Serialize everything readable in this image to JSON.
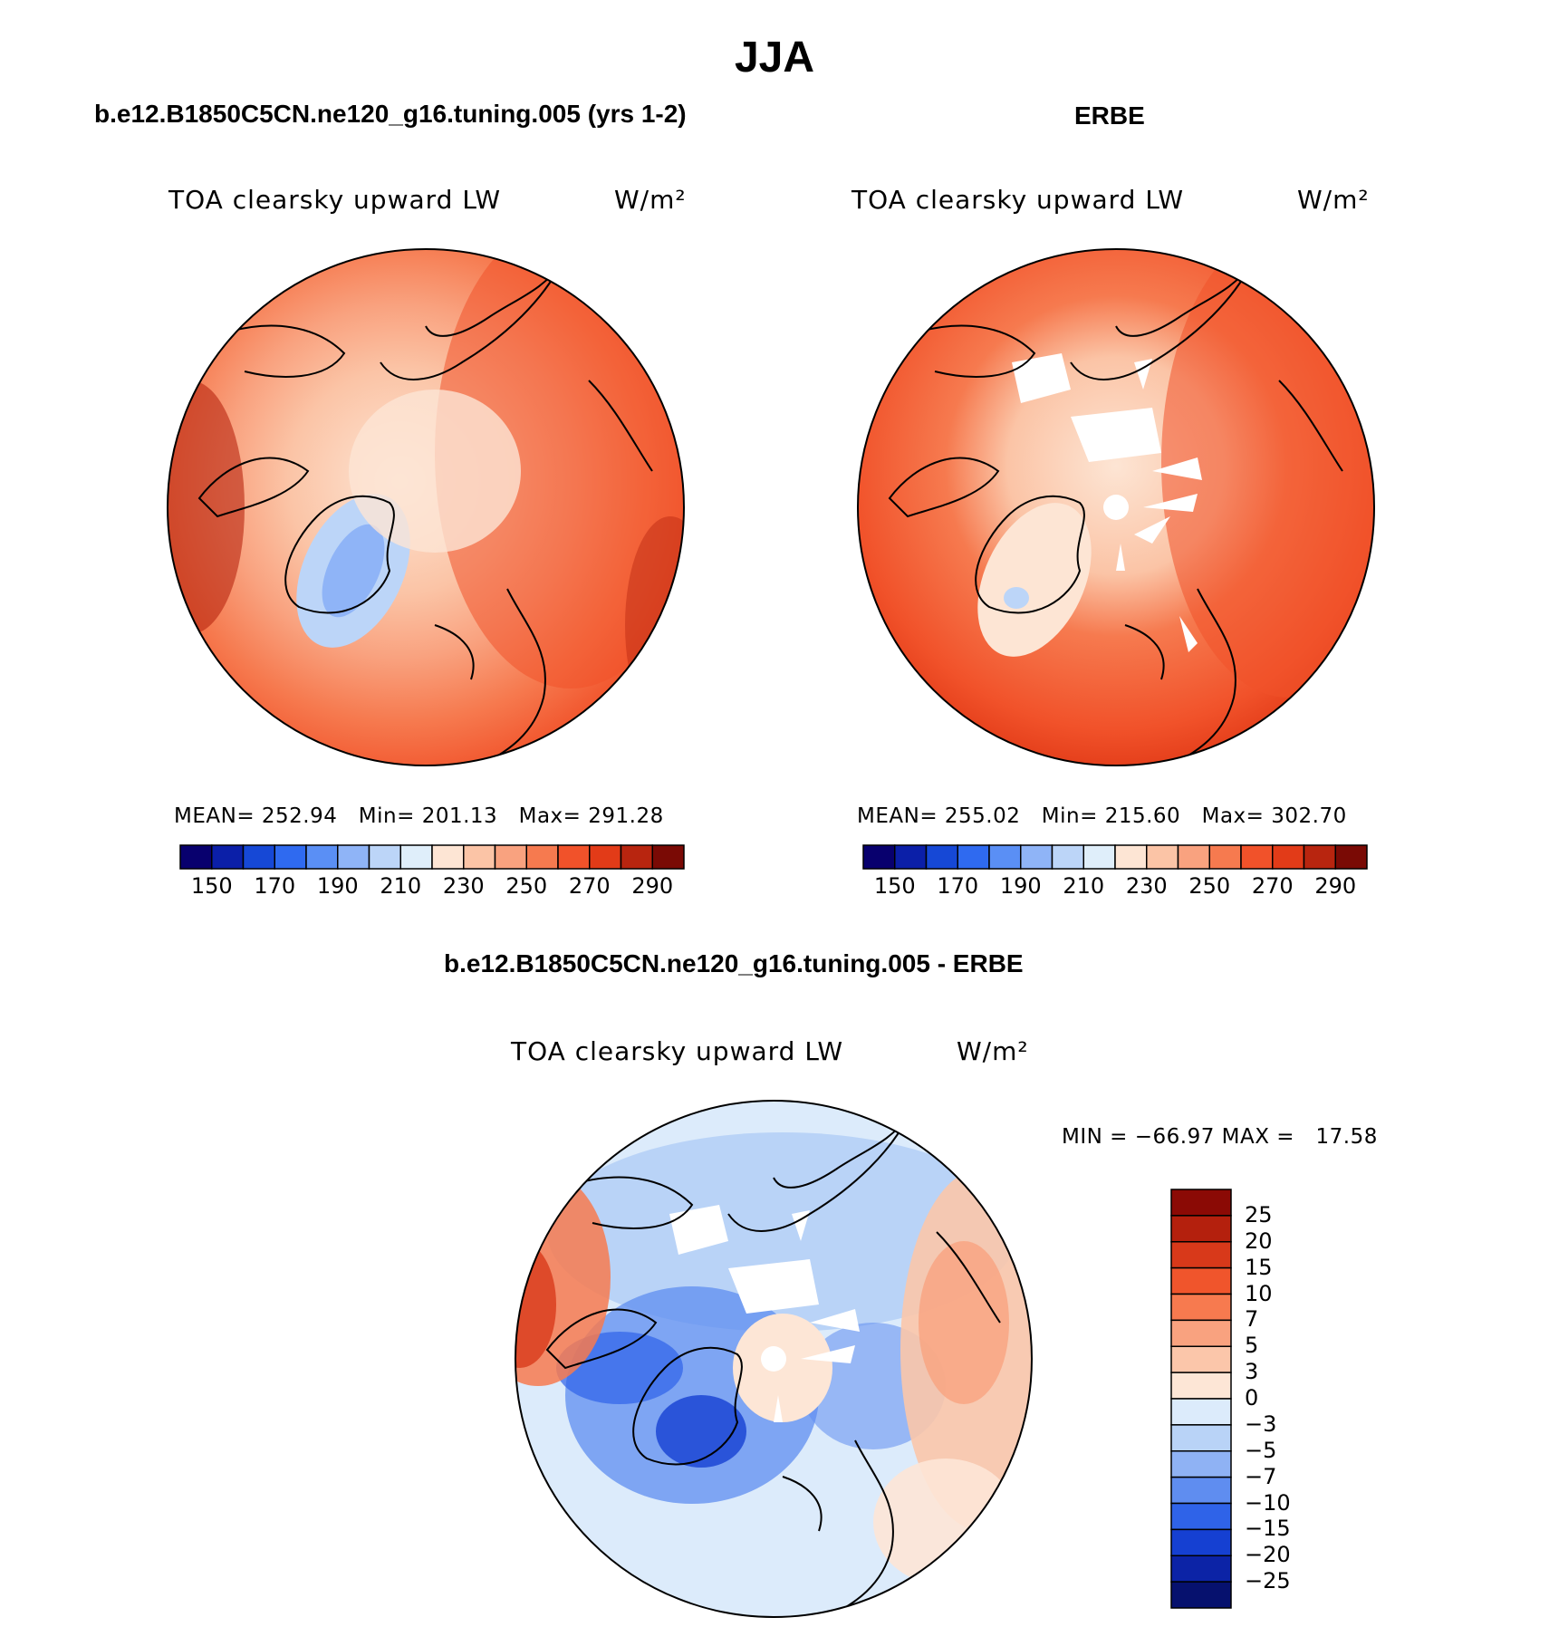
{
  "season_title": "JJA",
  "panels": [
    {
      "id": "model",
      "case_title": "b.e12.B1850C5CN.ne120_g16.tuning.005 (yrs 1-2)",
      "variable_label": "TOA clearsky upward LW",
      "units": "W/m²",
      "stats": "MEAN= 252.94   Min= 201.13   Max= 291.28",
      "colorbar_ticks": [
        "150",
        "170",
        "190",
        "210",
        "230",
        "250",
        "270",
        "290"
      ],
      "colorbar_colors": [
        "#08006e",
        "#0b1fa8",
        "#1648d6",
        "#2f6af0",
        "#5a8ff5",
        "#8fb4f7",
        "#bcd5f8",
        "#dfeefa",
        "#fde5d4",
        "#fbc4a6",
        "#f9a27f",
        "#f67a4f",
        "#f1522a",
        "#e23b18",
        "#b8250f",
        "#7a0a05"
      ]
    },
    {
      "id": "obs",
      "case_title": "ERBE",
      "variable_label": "TOA clearsky upward LW",
      "units": "W/m²",
      "stats": "MEAN= 255.02   Min= 215.60   Max= 302.70",
      "colorbar_ticks": [
        "150",
        "170",
        "190",
        "210",
        "230",
        "250",
        "270",
        "290"
      ],
      "colorbar_colors": [
        "#08006e",
        "#0b1fa8",
        "#1648d6",
        "#2f6af0",
        "#5a8ff5",
        "#8fb4f7",
        "#bcd5f8",
        "#dfeefa",
        "#fde5d4",
        "#fbc4a6",
        "#f9a27f",
        "#f67a4f",
        "#f1522a",
        "#e23b18",
        "#b8250f",
        "#7a0a05"
      ]
    }
  ],
  "diff_panel": {
    "case_title": "b.e12.B1850C5CN.ne120_g16.tuning.005 - ERBE",
    "variable_label": "TOA clearsky upward LW",
    "units": "W/m²",
    "stats": "MIN = −66.97 MAX =   17.58",
    "colorbar_ticks": [
      "25",
      "20",
      "15",
      "10",
      "7",
      "5",
      "3",
      "0",
      "−3",
      "−5",
      "−7",
      "−10",
      "−15",
      "−20",
      "−25"
    ],
    "colorbar_colors": [
      "#8b0a05",
      "#b4200d",
      "#d8391a",
      "#f0552c",
      "#f77a4f",
      "#f9a27f",
      "#fbc6aa",
      "#fde6d6",
      "#dcebfb",
      "#b9d3f7",
      "#8fb2f4",
      "#5f8df0",
      "#2f63e8",
      "#1540d2",
      "#0c23a6",
      "#06116e"
    ]
  }
}
